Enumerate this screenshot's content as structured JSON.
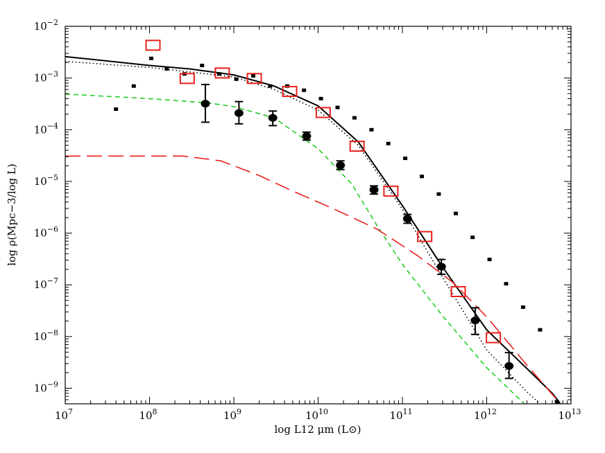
{
  "chart_data": {
    "type": "scatter",
    "title": "",
    "xlabel": "log L12 μm (L⊙)",
    "ylabel": "log ρ(Mpc−3/log L)",
    "xscale": "log",
    "yscale": "log",
    "xlim": [
      10000000.0,
      10000000000000.0
    ],
    "ylim": [
      5e-10,
      0.01
    ],
    "x_ticks": [
      {
        "value": 10000000.0,
        "base": "10",
        "exp": "7"
      },
      {
        "value": 100000000.0,
        "base": "10",
        "exp": "8"
      },
      {
        "value": 1000000000.0,
        "base": "10",
        "exp": "9"
      },
      {
        "value": 10000000000.0,
        "base": "10",
        "exp": "10"
      },
      {
        "value": 100000000000.0,
        "base": "10",
        "exp": "11"
      },
      {
        "value": 1000000000000.0,
        "base": "10",
        "exp": "12"
      },
      {
        "value": 10000000000000.0,
        "base": "10",
        "exp": "13"
      }
    ],
    "y_ticks": [
      {
        "value": 1e-09,
        "base": "10",
        "exp": "−9"
      },
      {
        "value": 1e-08,
        "base": "10",
        "exp": "−8"
      },
      {
        "value": 1e-07,
        "base": "10",
        "exp": "−7"
      },
      {
        "value": 1e-06,
        "base": "10",
        "exp": "−6"
      },
      {
        "value": 1e-05,
        "base": "10",
        "exp": "−5"
      },
      {
        "value": 0.0001,
        "base": "10",
        "exp": "−4"
      },
      {
        "value": 0.001,
        "base": "10",
        "exp": "−3"
      },
      {
        "value": 0.01,
        "base": "10",
        "exp": "−2"
      }
    ],
    "series": [
      {
        "style": "points-filled-circle-errorbars",
        "color": "#000000",
        "x": [
          460000000.0,
          1150000000.0,
          2900000000.0,
          7300000000.0,
          18400000000.0,
          46000000000.0,
          115000000000.0,
          290000000000.0,
          730000000000.0,
          1840000000000.0
        ],
        "y": [
          0.00032,
          0.00021,
          0.00017,
          7.5e-05,
          2.05e-05,
          6.9e-06,
          1.9e-06,
          2.25e-07,
          2.05e-08,
          2.7e-09
        ],
        "yerr_low": [
          0.00014,
          0.00013,
          0.00012,
          6.3e-05,
          1.7e-05,
          5.7e-06,
          1.55e-06,
          1.6e-07,
          1.1e-08,
          1.55e-09
        ],
        "yerr_high": [
          0.00075,
          0.00035,
          0.00023,
          9e-05,
          2.5e-05,
          8.2e-06,
          2.3e-06,
          3.1e-07,
          3.6e-08,
          4.9e-09
        ]
      },
      {
        "style": "points-small-square",
        "color": "#000000",
        "x": [
          40000000.0,
          65000000.0,
          105000000.0,
          160000000.0,
          260000000.0,
          420000000.0,
          670000000.0,
          1070000000.0,
          1700000000.0,
          2700000000.0,
          4300000000.0,
          6800000000.0,
          10800000000.0,
          17000000000.0,
          27000000000.0,
          43000000000.0,
          68000000000.0,
          108000000000.0,
          170000000000.0,
          270000000000.0,
          430000000000.0,
          680000000000.0,
          1080000000000.0,
          1700000000000.0,
          2700000000000.0,
          4300000000000.0,
          6800000000000.0
        ],
        "y": [
          0.00025,
          0.0007,
          0.0024,
          0.0015,
          0.0012,
          0.00175,
          0.0012,
          0.00095,
          0.0011,
          0.0007,
          0.0007,
          0.00058,
          0.0004,
          0.00027,
          0.00017,
          0.0001,
          5.4e-05,
          2.8e-05,
          1.25e-05,
          5.7e-06,
          2.4e-06,
          8.3e-07,
          3.1e-07,
          1.05e-07,
          3.7e-08,
          1.35e-08,
          5.5e-10
        ]
      },
      {
        "style": "points-open-square",
        "color": "#e8201c",
        "x": [
          110000000.0,
          280000000.0,
          730000000.0,
          1750000000.0,
          4600000000.0,
          11500000000.0,
          29000000000.0,
          73000000000.0,
          184000000000.0,
          460000000000.0,
          1200000000000.0
        ],
        "y": [
          0.0043,
          0.00098,
          0.00125,
          0.00098,
          0.00055,
          0.000215,
          4.8e-05,
          6.5e-06,
          8.6e-07,
          7.4e-08,
          9.5e-09
        ]
      },
      {
        "style": "line-solid",
        "color": "#000000",
        "x": [
          10000000.0,
          100000000.0,
          300000000.0,
          1000000000.0,
          3000000000.0,
          10000000000.0,
          30000000000.0,
          100000000000.0,
          300000000000.0,
          1000000000000.0,
          3000000000000.0,
          6000000000000.0,
          7500000000000.0
        ],
        "y": [
          0.0026,
          0.00175,
          0.0015,
          0.00115,
          0.0007,
          0.00029,
          5.8e-05,
          3.4e-06,
          2.2e-07,
          1.35e-08,
          2.4e-09,
          8e-10,
          5e-10
        ]
      },
      {
        "style": "line-dotted",
        "color": "#000000",
        "x": [
          10000000.0,
          100000000.0,
          1000000000.0,
          3000000000.0,
          10000000000.0,
          30000000000.0,
          100000000000.0,
          300000000000.0,
          1000000000000.0,
          3000000000000.0,
          4300000000000.0
        ],
        "y": [
          0.0021,
          0.0016,
          0.00105,
          0.0006,
          0.00024,
          5e-05,
          2.9e-06,
          1.4e-07,
          5.5e-09,
          8.5e-10,
          5e-10
        ]
      },
      {
        "style": "line-short-dash",
        "color": "#22cc22",
        "x": [
          10000000.0,
          100000000.0,
          500000000.0,
          1000000000.0,
          3000000000.0,
          10000000000.0,
          25000000000.0,
          50000000000.0,
          100000000000.0,
          300000000000.0,
          1000000000000.0,
          2800000000000.0
        ],
        "y": [
          0.00049,
          0.0004,
          0.00033,
          0.00028,
          0.00017,
          4.3e-05,
          9e-06,
          1.4e-06,
          2.5e-07,
          2.5e-08,
          2.5e-09,
          5e-10
        ]
      },
      {
        "style": "line-long-dash",
        "color": "#e8201c",
        "x": [
          10000000.0,
          100000000.0,
          250000000.0,
          700000000.0,
          2000000000.0,
          5000000000.0,
          15000000000.0,
          50000000000.0,
          150000000000.0,
          400000000000.0,
          1000000000000.0,
          3000000000000.0,
          7500000000000.0
        ],
        "y": [
          3.1e-05,
          3.1e-05,
          3.1e-05,
          2.5e-05,
          1.3e-05,
          6.5e-06,
          3e-06,
          1.2e-06,
          3.7e-07,
          1.1e-07,
          2.4e-08,
          2.8e-09,
          5e-10
        ]
      }
    ]
  }
}
